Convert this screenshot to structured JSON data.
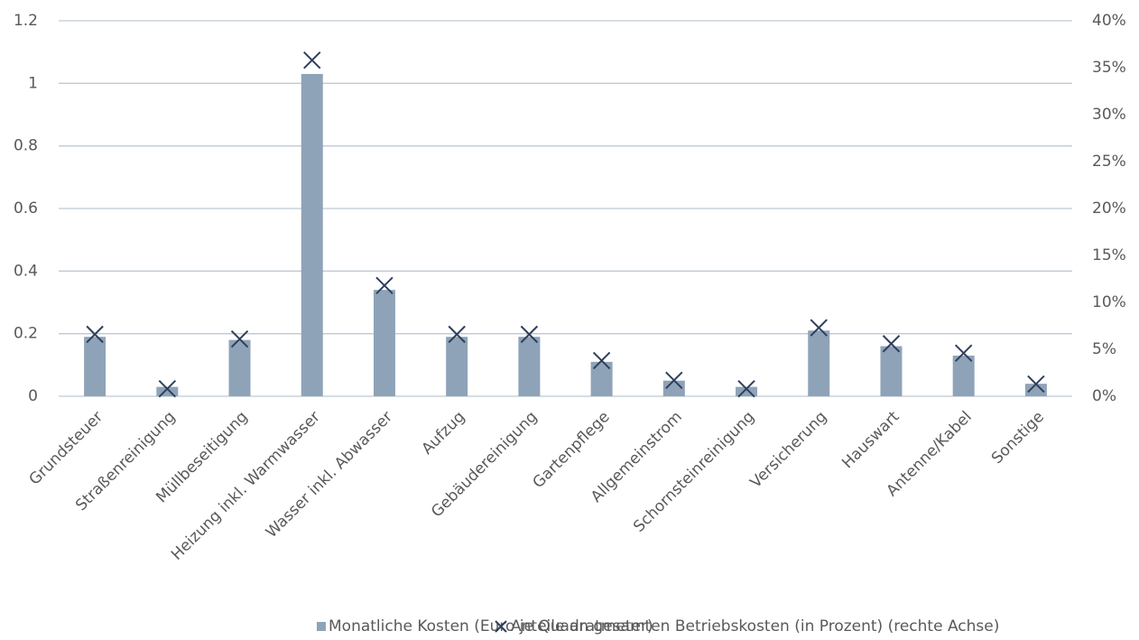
{
  "chart_data": {
    "type": "bar",
    "categories": [
      "Grundsteuer",
      "Straßenreinigung",
      "Müllbeseitigung",
      "Heizung inkl. Warmwasser",
      "Wasser inkl. Abwasser",
      "Aufzug",
      "Gebäudereinigung",
      "Gartenpflege",
      "Allgemeinstrom",
      "Schornsteinreinigung",
      "Versicherung",
      "Hauswart",
      "Antenne/Kabel",
      "Sonstige"
    ],
    "series": [
      {
        "name": "Monatliche Kosten (Euro je Quadratmeter)",
        "type": "bar",
        "color": "#8fa3b8",
        "values": [
          0.19,
          0.03,
          0.18,
          1.03,
          0.34,
          0.19,
          0.19,
          0.11,
          0.05,
          0.03,
          0.21,
          0.16,
          0.13,
          0.04
        ]
      },
      {
        "name": "Anteile an gesamten Betriebskosten (in Prozent) (rechte Achse)",
        "type": "scatter",
        "axis": "y2",
        "color": "#2e3f5c",
        "values": [
          6.6,
          0.8,
          6.1,
          35.8,
          11.8,
          6.6,
          6.6,
          3.8,
          1.7,
          0.8,
          7.3,
          5.6,
          4.6,
          1.3
        ]
      }
    ],
    "ylim": [
      0,
      1.2
    ],
    "yticks": [
      0,
      0.2,
      0.4,
      0.6,
      0.8,
      1,
      1.2
    ],
    "y2lim": [
      0,
      40
    ],
    "y2ticks": [
      {
        "value": 0,
        "label": "0%"
      },
      {
        "value": 5,
        "label": "5%"
      },
      {
        "value": 10,
        "label": "10%"
      },
      {
        "value": 15,
        "label": "15%"
      },
      {
        "value": 20,
        "label": "20%"
      },
      {
        "value": 25,
        "label": "25%"
      },
      {
        "value": 30,
        "label": "30%"
      },
      {
        "value": 35,
        "label": "35%"
      },
      {
        "value": 40,
        "label": "40%"
      }
    ],
    "grid": true,
    "legend": "bottom"
  }
}
